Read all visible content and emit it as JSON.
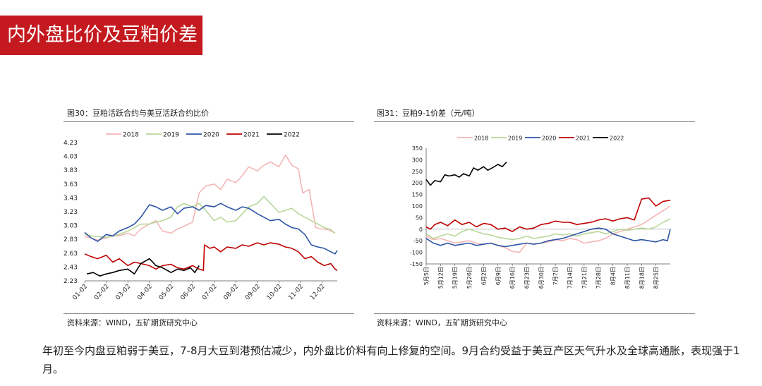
{
  "page": {
    "section_title": "内外盘比价及豆粕价差"
  },
  "left_chart": {
    "caption": "图30：豆粕活跃合约与美豆活跃合约比价",
    "source": "资料来源：WIND，五矿期货研究中心"
  },
  "right_chart": {
    "caption": "图31：豆粕9-1价差（元/吨）",
    "source": "资料来源：WIND，五矿期货研究中心"
  },
  "summary": "年初至今内盘豆粕弱于美豆，7-8月大豆到港预估减少，内外盘比价料有向上修复的空间。9月合约受益于美豆产区天气升水及全球高通胀，表现强于1月。",
  "colors": {
    "2018": "#f4b6b6",
    "2019": "#b9d79a",
    "2020": "#2e54a6",
    "2021": "#c00000",
    "2022": "#000000"
  },
  "chart_data": [
    {
      "type": "line",
      "title": "图30：豆粕活跃合约与美豆活跃合约比价",
      "xlabel": "",
      "ylabel": "",
      "categories": [
        "01-02",
        "02-02",
        "03-02",
        "04-02",
        "05-02",
        "06-02",
        "07-02",
        "08-02",
        "09-02",
        "10-02",
        "11-02",
        "12-02"
      ],
      "x_range": [
        1,
        12.7
      ],
      "y_ticks": [
        "4.23",
        "4.03",
        "3.83",
        "3.63",
        "3.43",
        "3.23",
        "3.03",
        "2.83",
        "2.63",
        "2.43",
        "2.23"
      ],
      "ylim": [
        2.23,
        4.23
      ],
      "legend_position": "top",
      "grid": false,
      "series": [
        {
          "name": "2018",
          "color": "#f4b6b6",
          "x": [
            1.0,
            1.3,
            1.6,
            2.0,
            2.3,
            2.6,
            3.0,
            3.3,
            3.6,
            4.0,
            4.3,
            4.6,
            5.0,
            5.3,
            5.6,
            6.0,
            6.3,
            6.6,
            7.0,
            7.3,
            7.6,
            8.0,
            8.3,
            8.6,
            9.0,
            9.3,
            9.6,
            10.0,
            10.3,
            10.6,
            10.9,
            11.1,
            11.4,
            11.7,
            12.0,
            12.3,
            12.6
          ],
          "y": [
            2.87,
            2.85,
            2.82,
            2.85,
            2.88,
            2.88,
            2.92,
            2.88,
            2.98,
            3.05,
            3.1,
            2.95,
            2.92,
            2.98,
            3.02,
            3.08,
            3.5,
            3.6,
            3.63,
            3.55,
            3.7,
            3.65,
            3.75,
            3.88,
            3.82,
            3.9,
            3.95,
            3.88,
            4.05,
            3.9,
            3.85,
            3.5,
            3.55,
            3.0,
            2.98,
            2.97,
            2.92
          ]
        },
        {
          "name": "2019",
          "color": "#b9d79a",
          "x": [
            1.0,
            1.3,
            1.6,
            2.0,
            2.3,
            2.6,
            3.0,
            3.3,
            3.6,
            4.0,
            4.3,
            4.6,
            5.0,
            5.3,
            5.6,
            6.0,
            6.3,
            6.6,
            7.0,
            7.3,
            7.6,
            8.0,
            8.3,
            8.6,
            9.0,
            9.3,
            9.6,
            10.0,
            10.3,
            10.6,
            10.9,
            11.2,
            11.5,
            11.8,
            12.1,
            12.4,
            12.6
          ],
          "y": [
            2.9,
            2.88,
            2.87,
            2.86,
            2.88,
            2.9,
            2.95,
            3.0,
            3.05,
            3.05,
            3.08,
            3.1,
            3.15,
            3.3,
            3.35,
            3.3,
            3.35,
            3.25,
            3.1,
            3.15,
            3.08,
            3.1,
            3.2,
            3.3,
            3.35,
            3.45,
            3.35,
            3.22,
            3.25,
            3.28,
            3.2,
            3.15,
            3.1,
            3.05,
            3.0,
            2.97,
            2.92
          ]
        },
        {
          "name": "2020",
          "color": "#2e54a6",
          "x": [
            1.0,
            1.3,
            1.6,
            2.0,
            2.3,
            2.6,
            3.0,
            3.3,
            3.6,
            4.0,
            4.3,
            4.6,
            5.0,
            5.3,
            5.6,
            6.0,
            6.3,
            6.6,
            7.0,
            7.3,
            7.6,
            8.0,
            8.3,
            8.6,
            9.0,
            9.3,
            9.6,
            10.0,
            10.3,
            10.6,
            10.9,
            11.2,
            11.5,
            11.8,
            12.1,
            12.4,
            12.6,
            12.7
          ],
          "y": [
            2.93,
            2.85,
            2.8,
            2.9,
            2.88,
            2.95,
            3.0,
            3.05,
            3.15,
            3.33,
            3.3,
            3.25,
            3.3,
            3.2,
            3.28,
            3.3,
            3.25,
            3.32,
            3.3,
            3.35,
            3.3,
            3.25,
            3.3,
            3.28,
            3.2,
            3.15,
            3.1,
            3.12,
            3.05,
            3.0,
            2.98,
            2.9,
            2.75,
            2.72,
            2.7,
            2.65,
            2.62,
            2.67
          ]
        },
        {
          "name": "2021",
          "color": "#c00000",
          "x": [
            1.0,
            1.3,
            1.6,
            2.0,
            2.3,
            2.6,
            3.0,
            3.3,
            3.6,
            4.0,
            4.3,
            4.6,
            5.0,
            5.3,
            5.6,
            6.0,
            6.3,
            6.5,
            6.55,
            6.8,
            7.0,
            7.3,
            7.6,
            8.0,
            8.3,
            8.6,
            9.0,
            9.3,
            9.6,
            10.0,
            10.3,
            10.6,
            10.9,
            11.2,
            11.5,
            11.8,
            12.1,
            12.4,
            12.6,
            12.7
          ],
          "y": [
            2.62,
            2.58,
            2.55,
            2.6,
            2.5,
            2.55,
            2.45,
            2.5,
            2.48,
            2.45,
            2.4,
            2.45,
            2.47,
            2.42,
            2.4,
            2.45,
            2.4,
            2.38,
            2.75,
            2.7,
            2.72,
            2.65,
            2.72,
            2.7,
            2.75,
            2.73,
            2.78,
            2.75,
            2.78,
            2.76,
            2.72,
            2.7,
            2.65,
            2.55,
            2.58,
            2.5,
            2.45,
            2.48,
            2.4,
            2.38
          ]
        },
        {
          "name": "2022",
          "color": "#000000",
          "x": [
            1.1,
            1.4,
            1.7,
            2.0,
            2.3,
            2.6,
            3.0,
            3.3,
            3.6,
            4.0,
            4.3,
            4.6,
            5.0,
            5.3,
            5.6,
            5.9,
            6.1,
            6.3
          ],
          "y": [
            2.33,
            2.35,
            2.3,
            2.33,
            2.35,
            2.38,
            2.4,
            2.33,
            2.48,
            2.55,
            2.45,
            2.42,
            2.35,
            2.4,
            2.38,
            2.42,
            2.35,
            2.45
          ]
        }
      ]
    },
    {
      "type": "line",
      "title": "图31：豆粕9-1价差（元/吨）",
      "xlabel": "",
      "ylabel": "",
      "categories": [
        "5月5日",
        "5月12日",
        "5月19日",
        "5月26日",
        "6月2日",
        "6月9日",
        "6月16日",
        "6月23日",
        "6月30日",
        "7月7日",
        "7月14日",
        "7月21日",
        "7月28日",
        "8月4日",
        "8月11日",
        "8月18日",
        "8月25日"
      ],
      "x_range": [
        0,
        17
      ],
      "ylim": [
        -150,
        350
      ],
      "y_ticks": [
        350,
        300,
        250,
        200,
        150,
        100,
        50,
        0,
        -50,
        -100,
        -150
      ],
      "legend_position": "top",
      "grid": false,
      "series": [
        {
          "name": "2018",
          "color": "#f4b6b6",
          "x": [
            0,
            0.5,
            1,
            1.5,
            2,
            2.5,
            3,
            3.5,
            4,
            4.5,
            5,
            5.5,
            6,
            6.5,
            7,
            7.5,
            8,
            8.5,
            9,
            9.5,
            10,
            10.5,
            11,
            11.5,
            12,
            12.5,
            13,
            13.5,
            14,
            14.5,
            15,
            15.5,
            16,
            16.5,
            17
          ],
          "y": [
            -30,
            -45,
            -40,
            -50,
            -60,
            -55,
            -50,
            -60,
            -65,
            -60,
            -70,
            -80,
            -95,
            -100,
            -60,
            -65,
            -60,
            -55,
            -45,
            -50,
            -40,
            -45,
            -60,
            -55,
            -50,
            -40,
            -20,
            -10,
            0,
            10,
            20,
            40,
            60,
            80,
            100
          ]
        },
        {
          "name": "2019",
          "color": "#b9d79a",
          "x": [
            0,
            0.5,
            1,
            1.5,
            2,
            2.5,
            3,
            3.5,
            4,
            4.5,
            5,
            5.5,
            6,
            6.5,
            7,
            7.5,
            8,
            8.5,
            9,
            9.5,
            10,
            10.5,
            11,
            11.5,
            12,
            12.5,
            13,
            13.5,
            14,
            14.5,
            15,
            15.5,
            16,
            16.5,
            17
          ],
          "y": [
            -20,
            -40,
            -30,
            -20,
            -30,
            -10,
            0,
            -10,
            -20,
            -25,
            -35,
            -40,
            -45,
            -40,
            -30,
            -40,
            -35,
            -30,
            -20,
            -25,
            -20,
            -30,
            -20,
            -15,
            -10,
            -20,
            -10,
            0,
            -5,
            0,
            5,
            0,
            10,
            30,
            45
          ]
        },
        {
          "name": "2020",
          "color": "#2e54a6",
          "x": [
            0,
            0.5,
            1,
            1.5,
            2,
            2.5,
            3,
            3.5,
            4,
            4.5,
            5,
            5.5,
            6,
            6.5,
            7,
            7.5,
            8,
            8.5,
            9,
            9.5,
            10,
            10.5,
            11,
            11.5,
            12,
            12.5,
            13,
            13.5,
            14,
            14.5,
            15,
            15.5,
            16,
            16.5,
            16.8,
            17
          ],
          "y": [
            -40,
            -60,
            -70,
            -60,
            -70,
            -65,
            -60,
            -70,
            -65,
            -60,
            -70,
            -75,
            -70,
            -65,
            -60,
            -65,
            -60,
            -50,
            -45,
            -40,
            -30,
            -20,
            -10,
            0,
            5,
            0,
            -20,
            -30,
            -40,
            -50,
            -45,
            -50,
            -55,
            -45,
            -50,
            0
          ]
        },
        {
          "name": "2021",
          "color": "#c00000",
          "x": [
            0,
            0.3,
            0.6,
            1,
            1.5,
            2,
            2.5,
            3,
            3.5,
            4,
            4.5,
            5,
            5.5,
            6,
            6.5,
            7,
            7.5,
            8,
            8.5,
            9,
            9.5,
            10,
            10.5,
            11,
            11.5,
            12,
            12.5,
            13,
            13.5,
            14,
            14.5,
            15,
            15.5,
            16,
            16.5,
            17
          ],
          "y": [
            10,
            0,
            20,
            30,
            15,
            40,
            20,
            30,
            10,
            25,
            20,
            0,
            5,
            -10,
            10,
            0,
            5,
            20,
            25,
            35,
            30,
            30,
            20,
            25,
            30,
            40,
            45,
            35,
            45,
            50,
            40,
            130,
            135,
            100,
            120,
            125
          ]
        },
        {
          "name": "2022",
          "color": "#000000",
          "x": [
            0,
            0.3,
            0.6,
            1,
            1.3,
            1.6,
            2,
            2.3,
            2.6,
            3,
            3.3,
            3.6,
            4,
            4.3,
            4.6,
            5,
            5.3,
            5.6
          ],
          "y": [
            215,
            190,
            210,
            205,
            235,
            230,
            235,
            225,
            240,
            230,
            265,
            255,
            270,
            255,
            265,
            280,
            270,
            290
          ]
        }
      ]
    }
  ]
}
